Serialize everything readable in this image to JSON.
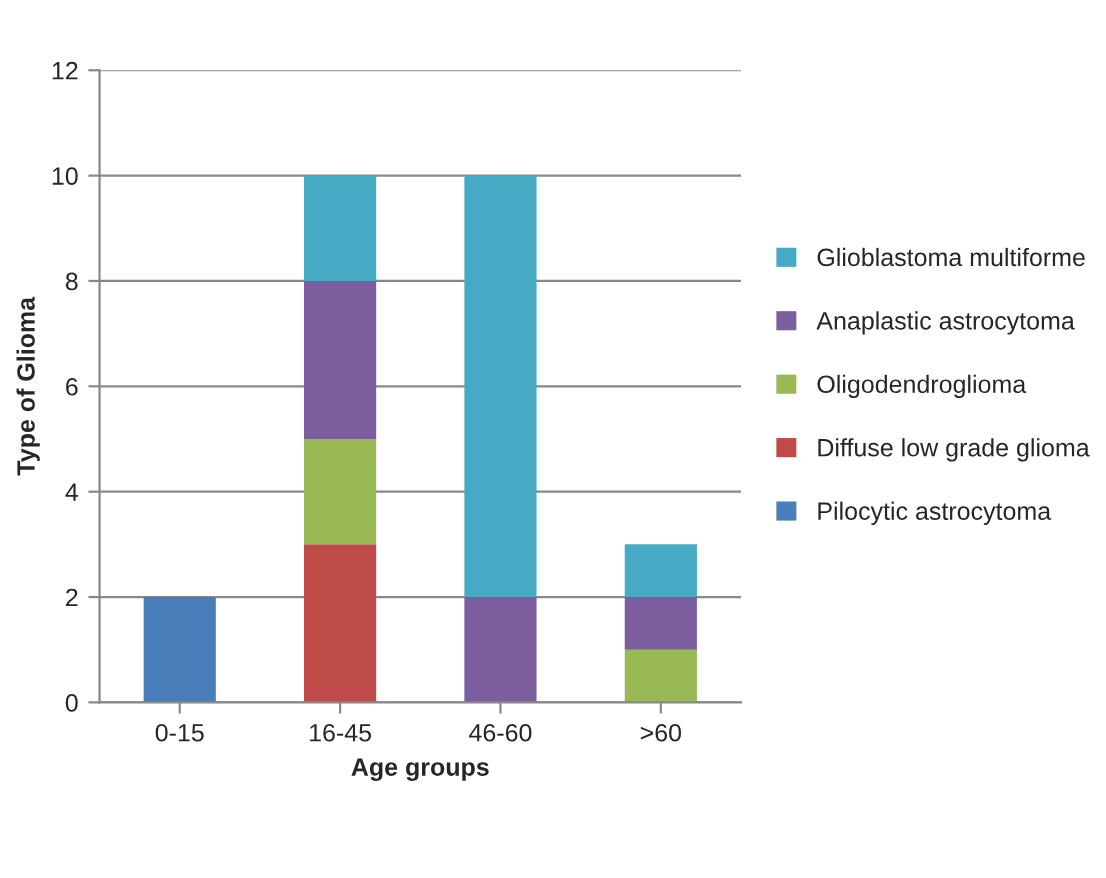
{
  "chart_data": {
    "type": "bar",
    "stacked": true,
    "xlabel": "Age groups",
    "ylabel": "Type of Glioma",
    "categories": [
      "0-15",
      "16-45",
      "46-60",
      ">60"
    ],
    "series": [
      {
        "name": "Pilocytic astrocytoma",
        "color": "#4a7ebb",
        "values": [
          2,
          0,
          0,
          0
        ]
      },
      {
        "name": "Diffuse low grade glioma",
        "color": "#be4b48",
        "values": [
          0,
          3,
          0,
          0
        ]
      },
      {
        "name": "Oligodendroglioma",
        "color": "#98b954",
        "values": [
          0,
          2,
          0,
          1
        ]
      },
      {
        "name": "Anaplastic astrocytoma",
        "color": "#7d5fa0",
        "values": [
          0,
          3,
          2,
          1
        ]
      },
      {
        "name": "Glioblastoma multiforme",
        "color": "#46aac5",
        "values": [
          0,
          2,
          8,
          1
        ]
      }
    ],
    "ylim": [
      0,
      12
    ],
    "yticks": [
      0,
      2,
      4,
      6,
      8,
      10,
      12
    ],
    "grid": "y",
    "legend": "right"
  }
}
